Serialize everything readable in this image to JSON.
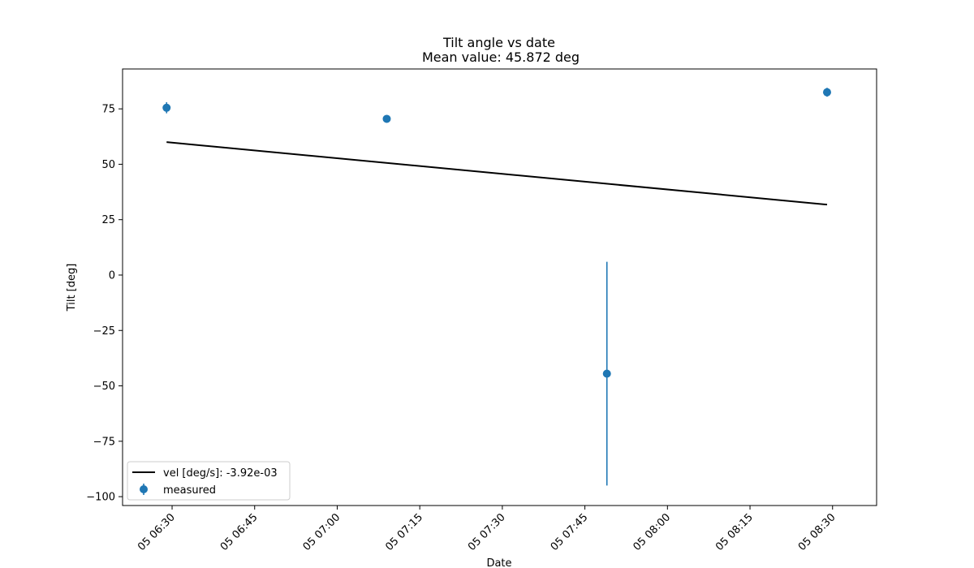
{
  "chart_data": {
    "type": "scatter",
    "title": "Tilt angle vs date",
    "subtitle": "Mean value: 45.872 deg",
    "xlabel": "Date",
    "ylabel": "Tilt [deg]",
    "x_range": [
      "2024-01-05T06:21",
      "2024-01-05T08:38"
    ],
    "ylim": [
      -104,
      93
    ],
    "x_ticks": [
      "05 06:30",
      "05 06:45",
      "05 07:00",
      "05 07:15",
      "05 07:30",
      "05 07:45",
      "05 08:00",
      "05 08:15",
      "05 08:30"
    ],
    "x_tick_times": [
      "2024-01-05T06:30",
      "2024-01-05T06:45",
      "2024-01-05T07:00",
      "2024-01-05T07:15",
      "2024-01-05T07:30",
      "2024-01-05T07:45",
      "2024-01-05T08:00",
      "2024-01-05T08:15",
      "2024-01-05T08:30"
    ],
    "y_ticks": [
      75,
      50,
      25,
      0,
      -25,
      -50,
      -75,
      -100
    ],
    "y_tick_labels": [
      "75",
      "50",
      "25",
      "0",
      "−25",
      "−50",
      "−75",
      "−100"
    ],
    "grid": false,
    "legend_position": "lower left",
    "series": [
      {
        "name": "measured",
        "kind": "errorbar",
        "color": "#1f77b4",
        "points": [
          {
            "t": "2024-01-05T06:29",
            "y": 75.5,
            "err": 2.5
          },
          {
            "t": "2024-01-05T07:09",
            "y": 70.5,
            "err": 1.5
          },
          {
            "t": "2024-01-05T07:49",
            "y": -44.5,
            "err": 50.5
          },
          {
            "t": "2024-01-05T08:29",
            "y": 82.5,
            "err": 2.0
          }
        ]
      },
      {
        "name": "vel [deg/s]: -3.92e-03",
        "kind": "line",
        "color": "#000000",
        "points": [
          {
            "t": "2024-01-05T06:29",
            "y": 60.0
          },
          {
            "t": "2024-01-05T08:29",
            "y": 31.8
          }
        ]
      }
    ]
  }
}
